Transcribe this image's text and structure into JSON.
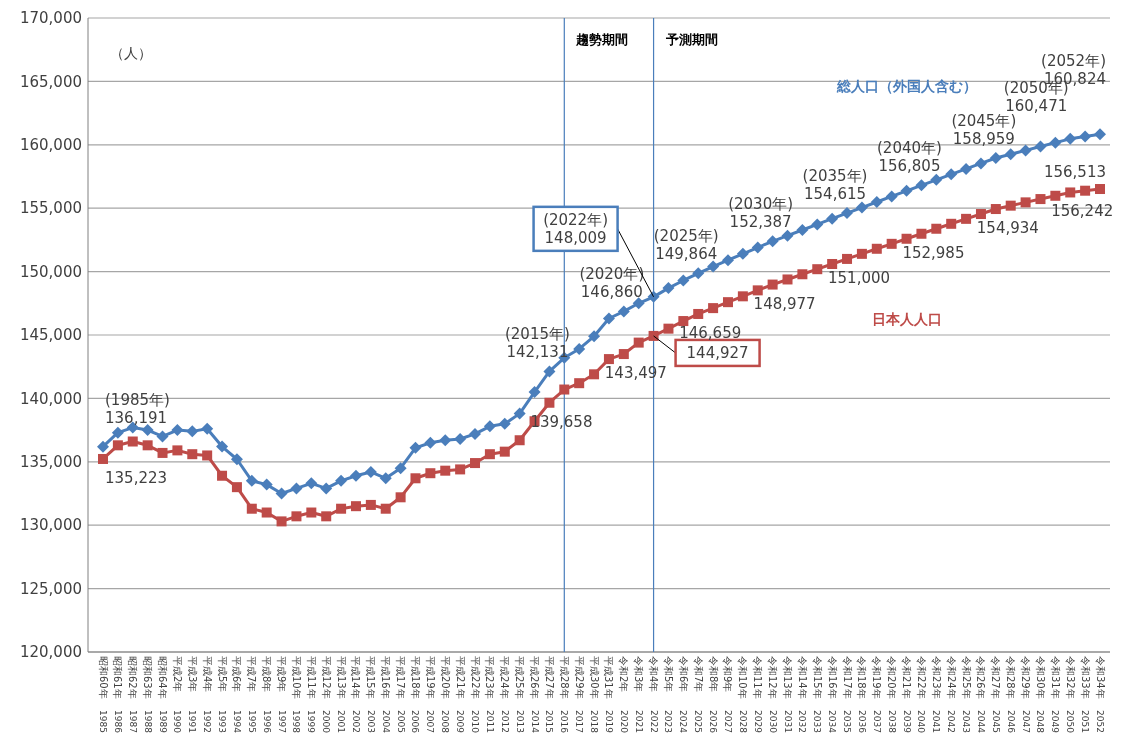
{
  "chart_data": {
    "type": "line",
    "ylabel": "（人）",
    "categories": [
      "昭和60年\n1985",
      "昭和61年\n1986",
      "昭和62年\n1987",
      "昭和63年\n1988",
      "昭和64年\n1989",
      "平成2年\n1990",
      "平成3年\n1991",
      "平成4年\n1992",
      "平成5年\n1993",
      "平成6年\n1994",
      "平成7年\n1995",
      "平成8年\n1996",
      "平成9年\n1997",
      "平成10年\n1998",
      "平成11年\n1999",
      "平成12年\n2000",
      "平成13年\n2001",
      "平成14年\n2002",
      "平成15年\n2003",
      "平成16年\n2004",
      "平成17年\n2005",
      "平成18年\n2006",
      "平成19年\n2007",
      "平成20年\n2008",
      "平成21年\n2009",
      "平成22年\n2010",
      "平成23年\n2011",
      "平成24年\n2012",
      "平成25年\n2013",
      "平成26年\n2014",
      "平成27年\n2015",
      "平成28年\n2016",
      "平成29年\n2017",
      "平成30年\n2018",
      "平成31年\n2019",
      "令和2年\n2020",
      "令和3年\n2021",
      "令和4年\n2022",
      "令和5年\n2023",
      "令和6年\n2024",
      "令和7年\n2025",
      "令和8年\n2026",
      "令和9年\n2027",
      "令和10年\n2028",
      "令和11年\n2029",
      "令和12年\n2030",
      "令和13年\n2031",
      "令和14年\n2032",
      "令和15年\n2033",
      "令和16年\n2034",
      "令和17年\n2035",
      "令和18年\n2036",
      "令和19年\n2037",
      "令和20年\n2038",
      "令和21年\n2039",
      "令和22年\n2040",
      "令和23年\n2041",
      "令和24年\n2042",
      "令和25年\n2043",
      "令和26年\n2044",
      "令和27年\n2045",
      "令和28年\n2046",
      "令和29年\n2047",
      "令和30年\n2048",
      "令和31年\n2049",
      "令和32年\n2050",
      "令和33年\n2051",
      "令和34年\n2052"
    ],
    "series": [
      {
        "name": "総人口（外国人含む）",
        "color": "#4a7ebb",
        "marker": "diamond",
        "values": [
          136191,
          137300,
          137700,
          137500,
          137000,
          137500,
          137400,
          137600,
          136200,
          135200,
          133500,
          133200,
          132500,
          132900,
          133300,
          132900,
          133500,
          133900,
          134200,
          133700,
          134500,
          136100,
          136500,
          136700,
          136800,
          137200,
          137800,
          138000,
          138800,
          140500,
          142131,
          143200,
          143900,
          144900,
          146300,
          146860,
          147500,
          148009,
          148700,
          149300,
          149864,
          150400,
          150900,
          151400,
          151900,
          152387,
          152830,
          153280,
          153720,
          154170,
          154615,
          155050,
          155490,
          155930,
          156370,
          156805,
          157240,
          157670,
          158100,
          158530,
          158959,
          159260,
          159560,
          159870,
          160170,
          160471,
          160650,
          160824
        ],
        "value_labels": [
          "(1985年)\n136,191",
          null,
          null,
          null,
          null,
          null,
          null,
          null,
          null,
          null,
          null,
          null,
          null,
          null,
          null,
          null,
          null,
          null,
          null,
          null,
          null,
          null,
          null,
          null,
          null,
          null,
          null,
          null,
          null,
          null,
          "(2015年)\n142,131",
          null,
          null,
          null,
          null,
          "(2020年)\n146,860",
          null,
          "(2022年)\n148,009",
          null,
          null,
          "(2025年)\n149,864",
          null,
          null,
          null,
          null,
          "(2030年)\n152,387",
          null,
          null,
          null,
          null,
          "(2035年)\n154,615",
          null,
          null,
          null,
          null,
          "(2040年)\n156,805",
          null,
          null,
          null,
          null,
          "(2045年)\n158,959",
          null,
          null,
          null,
          null,
          "(2050年)\n160,471",
          null,
          "(2052年)\n160,824"
        ]
      },
      {
        "name": "日本人人口",
        "color": "#be4b48",
        "marker": "square",
        "values": [
          135223,
          136300,
          136600,
          136300,
          135700,
          135900,
          135600,
          135500,
          133900,
          133000,
          131300,
          131000,
          130300,
          130700,
          131000,
          130700,
          131300,
          131500,
          131600,
          131300,
          132200,
          133700,
          134100,
          134300,
          134400,
          134900,
          135600,
          135800,
          136700,
          138200,
          139658,
          140700,
          141200,
          141900,
          143100,
          143497,
          144400,
          144927,
          145500,
          146100,
          146659,
          147120,
          147590,
          148050,
          148520,
          148977,
          149380,
          149790,
          150190,
          150600,
          151000,
          151400,
          151800,
          152190,
          152590,
          152985,
          153380,
          153770,
          154160,
          154540,
          154934,
          155200,
          155460,
          155720,
          155980,
          156242,
          156380,
          156513
        ],
        "value_labels": [
          "135,223",
          null,
          null,
          null,
          null,
          null,
          null,
          null,
          null,
          null,
          null,
          null,
          null,
          null,
          null,
          null,
          null,
          null,
          null,
          null,
          null,
          null,
          null,
          null,
          null,
          null,
          null,
          null,
          null,
          null,
          "139,658",
          null,
          null,
          null,
          null,
          "143,497",
          null,
          "144,927",
          null,
          null,
          "146,659",
          null,
          null,
          null,
          null,
          "148,977",
          null,
          null,
          null,
          null,
          "151,000",
          null,
          null,
          null,
          null,
          "152,985",
          null,
          null,
          null,
          null,
          "154,934",
          null,
          null,
          null,
          null,
          "156,242",
          null,
          "156,513"
        ]
      }
    ],
    "ylim": [
      120000,
      170000
    ],
    "yticks": [
      {
        "value": 120000,
        "label": "120,000"
      },
      {
        "value": 125000,
        "label": "125,000"
      },
      {
        "value": 130000,
        "label": "130,000"
      },
      {
        "value": 135000,
        "label": "135,000"
      },
      {
        "value": 140000,
        "label": "140,000"
      },
      {
        "value": 145000,
        "label": "145,000"
      },
      {
        "value": 150000,
        "label": "150,000"
      },
      {
        "value": 155000,
        "label": "155,000"
      },
      {
        "value": 160000,
        "label": "160,000"
      },
      {
        "value": 165000,
        "label": "165,000"
      },
      {
        "value": 170000,
        "label": "170,000"
      }
    ],
    "grid": "y",
    "ref_lines": [
      {
        "axis": "x",
        "value": "平成28年\n2016",
        "label": "趨勢期間",
        "color": "#4a7ebb"
      },
      {
        "axis": "x",
        "value": "令和4年\n2022",
        "label": "予測期間",
        "color": "#4a7ebb"
      }
    ]
  }
}
